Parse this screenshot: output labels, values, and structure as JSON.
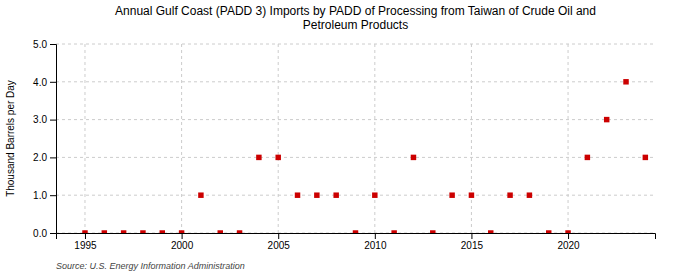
{
  "chart_data": {
    "type": "scatter",
    "title": "Annual Gulf Coast (PADD 3) Imports by PADD of Processing from Taiwan of Crude Oil and\nPetroleum Products",
    "ylabel": "Thousand Barrels per Day",
    "annotation": "Source: U.S. Energy Information Administration",
    "x": [
      1995,
      1996,
      1997,
      1998,
      1999,
      2000,
      2001,
      2002,
      2003,
      2004,
      2005,
      2006,
      2007,
      2008,
      2009,
      2010,
      2011,
      2012,
      2013,
      2014,
      2015,
      2016,
      2017,
      2018,
      2019,
      2020,
      2021,
      2022,
      2023,
      2024
    ],
    "values": [
      0.0,
      0.0,
      0.0,
      0.0,
      0.0,
      0.0,
      1.0,
      0.0,
      0.0,
      2.0,
      2.0,
      1.0,
      1.0,
      1.0,
      0.0,
      1.0,
      0.0,
      2.0,
      0.0,
      1.0,
      1.0,
      0.0,
      1.0,
      1.0,
      0.0,
      0.0,
      2.0,
      3.0,
      4.0,
      2.0
    ],
    "color": "#cc0000",
    "marker": "square",
    "xlim": [
      1993.5,
      2024.5
    ],
    "ylim": [
      0.0,
      5.0
    ],
    "xticks": [
      1995,
      2000,
      2005,
      2010,
      2015,
      2020
    ],
    "yticks": [
      {
        "value": 0.0,
        "label": "0.0"
      },
      {
        "value": 1.0,
        "label": "1.0"
      },
      {
        "value": 2.0,
        "label": "2.0"
      },
      {
        "value": 3.0,
        "label": "3.0"
      },
      {
        "value": 4.0,
        "label": "4.0"
      },
      {
        "value": 5.0,
        "label": "5.0"
      }
    ],
    "grid": true
  }
}
